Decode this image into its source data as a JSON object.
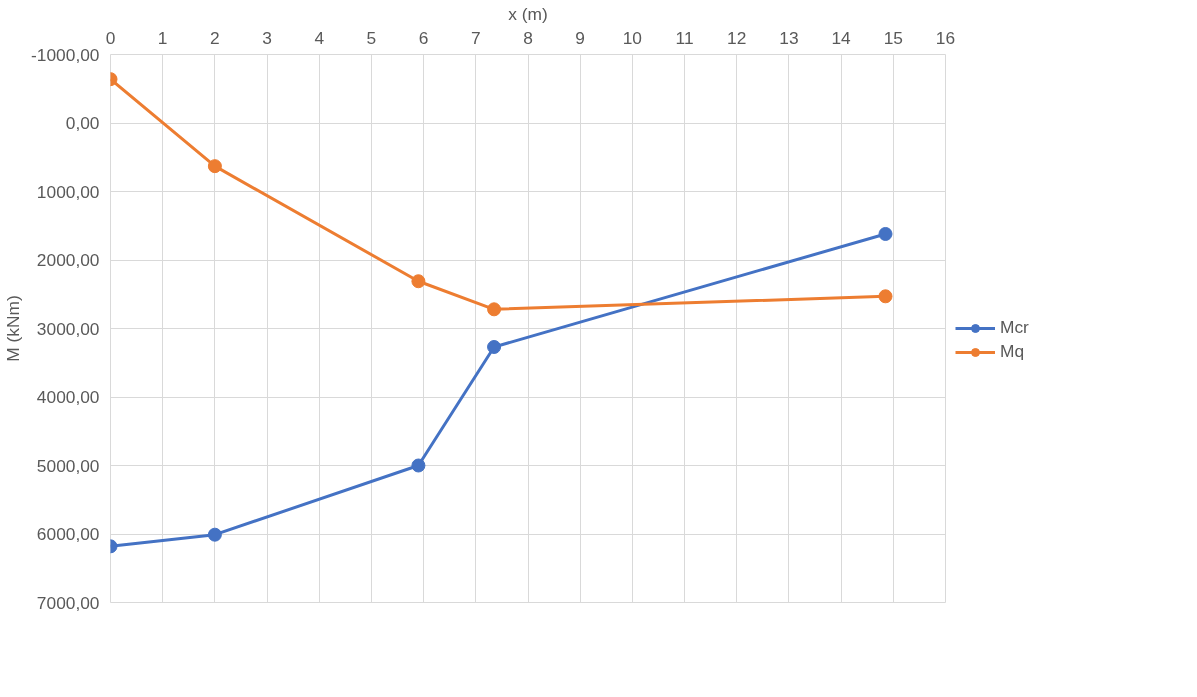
{
  "chart_data": {
    "type": "line",
    "xlabel": "x (m)",
    "ylabel": "M (kNm)",
    "x": [
      0,
      2,
      5.9,
      7.35,
      14.85
    ],
    "series": [
      {
        "name": "Mcr",
        "color": "#4472c4",
        "values": [
          6180,
          6010,
          5000,
          3270,
          1620
        ]
      },
      {
        "name": "Mq",
        "color": "#ed7d31",
        "values": [
          -640,
          630,
          2310,
          2720,
          2530
        ]
      }
    ],
    "xlim": [
      0,
      16
    ],
    "xticks": [
      0,
      1,
      2,
      3,
      4,
      5,
      6,
      7,
      8,
      9,
      10,
      11,
      12,
      13,
      14,
      15,
      16
    ],
    "ylim": [
      7000,
      -1000
    ],
    "yticks": [
      {
        "value": -1000,
        "label": "-1000,00"
      },
      {
        "value": 0,
        "label": "0,00"
      },
      {
        "value": 1000,
        "label": "1000,00"
      },
      {
        "value": 2000,
        "label": "2000,00"
      },
      {
        "value": 3000,
        "label": "3000,00"
      },
      {
        "value": 4000,
        "label": "4000,00"
      },
      {
        "value": 5000,
        "label": "5000,00"
      },
      {
        "value": 6000,
        "label": "6000,00"
      },
      {
        "value": 7000,
        "label": "7000,00"
      }
    ],
    "grid": true,
    "legend": "right",
    "marker": "circle",
    "line_style": "solid"
  }
}
